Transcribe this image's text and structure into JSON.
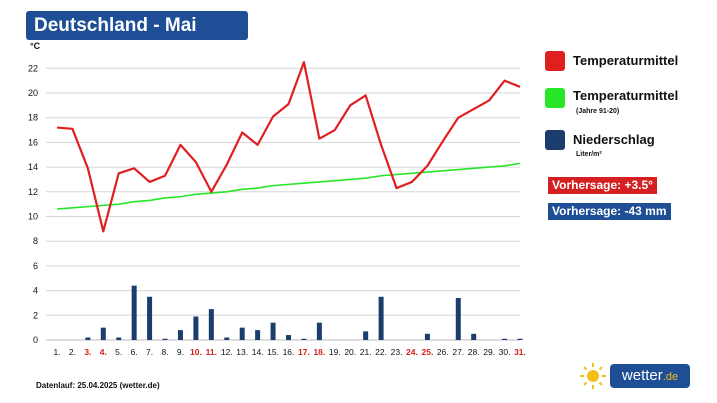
{
  "title": "Deutschland - Mai",
  "unit_label": "°C",
  "legend": {
    "temp_mean": {
      "label": "Temperaturmittel",
      "color": "#e01f1f"
    },
    "temp_clim": {
      "label": "Temperaturmittel",
      "sub": "(Jahre 91-20)",
      "color": "#27e627"
    },
    "precip": {
      "label": "Niederschlag",
      "sub": "Liter/m²",
      "color": "#1a3d6e"
    }
  },
  "forecast_temp": "Vorhersage: +3.5°",
  "forecast_precip": "Vorhersage: -43 mm",
  "footer": "Datenlauf: 25.04.2025 (wetter.de)",
  "brand": {
    "name": "wetter",
    "tld": ".de",
    "icon": "sun-icon"
  },
  "colors": {
    "title_bg": "#1d4e96",
    "forecast_temp_bg": "#d42020",
    "forecast_precip_bg": "#1d4e96",
    "weekend": "#d42020"
  },
  "chart_data": {
    "type": "line",
    "ylabel": "°C",
    "ylim": [
      0,
      23
    ],
    "yticks": [
      0,
      2,
      4,
      6,
      8,
      10,
      12,
      14,
      16,
      18,
      20,
      22
    ],
    "grid": true,
    "legend_position": "right",
    "categories": [
      "1.",
      "2.",
      "3.",
      "4.",
      "5.",
      "6.",
      "7.",
      "8.",
      "9.",
      "10.",
      "11.",
      "12.",
      "13.",
      "14.",
      "15.",
      "16.",
      "17.",
      "18.",
      "19.",
      "20.",
      "21.",
      "22.",
      "23.",
      "24.",
      "25.",
      "26.",
      "27.",
      "28.",
      "29.",
      "30.",
      "31."
    ],
    "highlight_days": [
      3,
      4,
      10,
      11,
      17,
      18,
      24,
      25,
      31
    ],
    "series": [
      {
        "name": "Temperaturmittel",
        "type": "line",
        "values": [
          17.2,
          17.1,
          13.9,
          8.8,
          13.5,
          13.9,
          12.8,
          13.3,
          15.8,
          14.4,
          12.0,
          14.2,
          16.8,
          15.8,
          18.1,
          19.1,
          22.5,
          16.3,
          17.0,
          19.0,
          19.8,
          15.8,
          12.3,
          12.8,
          14.1,
          16.1,
          18.0,
          18.7,
          19.4,
          21.0,
          20.5
        ]
      },
      {
        "name": "Temperaturmittel (Jahre 91-20)",
        "type": "line",
        "values": [
          10.6,
          10.7,
          10.8,
          10.9,
          11.0,
          11.2,
          11.3,
          11.5,
          11.6,
          11.8,
          11.9,
          12.0,
          12.2,
          12.3,
          12.5,
          12.6,
          12.7,
          12.8,
          12.9,
          13.0,
          13.1,
          13.3,
          13.4,
          13.5,
          13.6,
          13.7,
          13.8,
          13.9,
          14.0,
          14.1,
          14.3
        ]
      },
      {
        "name": "Niederschlag",
        "type": "bar",
        "values": [
          0,
          0,
          0.2,
          1.0,
          0.2,
          4.4,
          3.5,
          0.1,
          0.8,
          1.9,
          2.5,
          0.2,
          1.0,
          0.8,
          1.4,
          0.4,
          0.1,
          1.4,
          0,
          0,
          0.7,
          3.5,
          0,
          0,
          0.5,
          0,
          3.4,
          0.5,
          0,
          0.1,
          0.1
        ]
      }
    ]
  }
}
